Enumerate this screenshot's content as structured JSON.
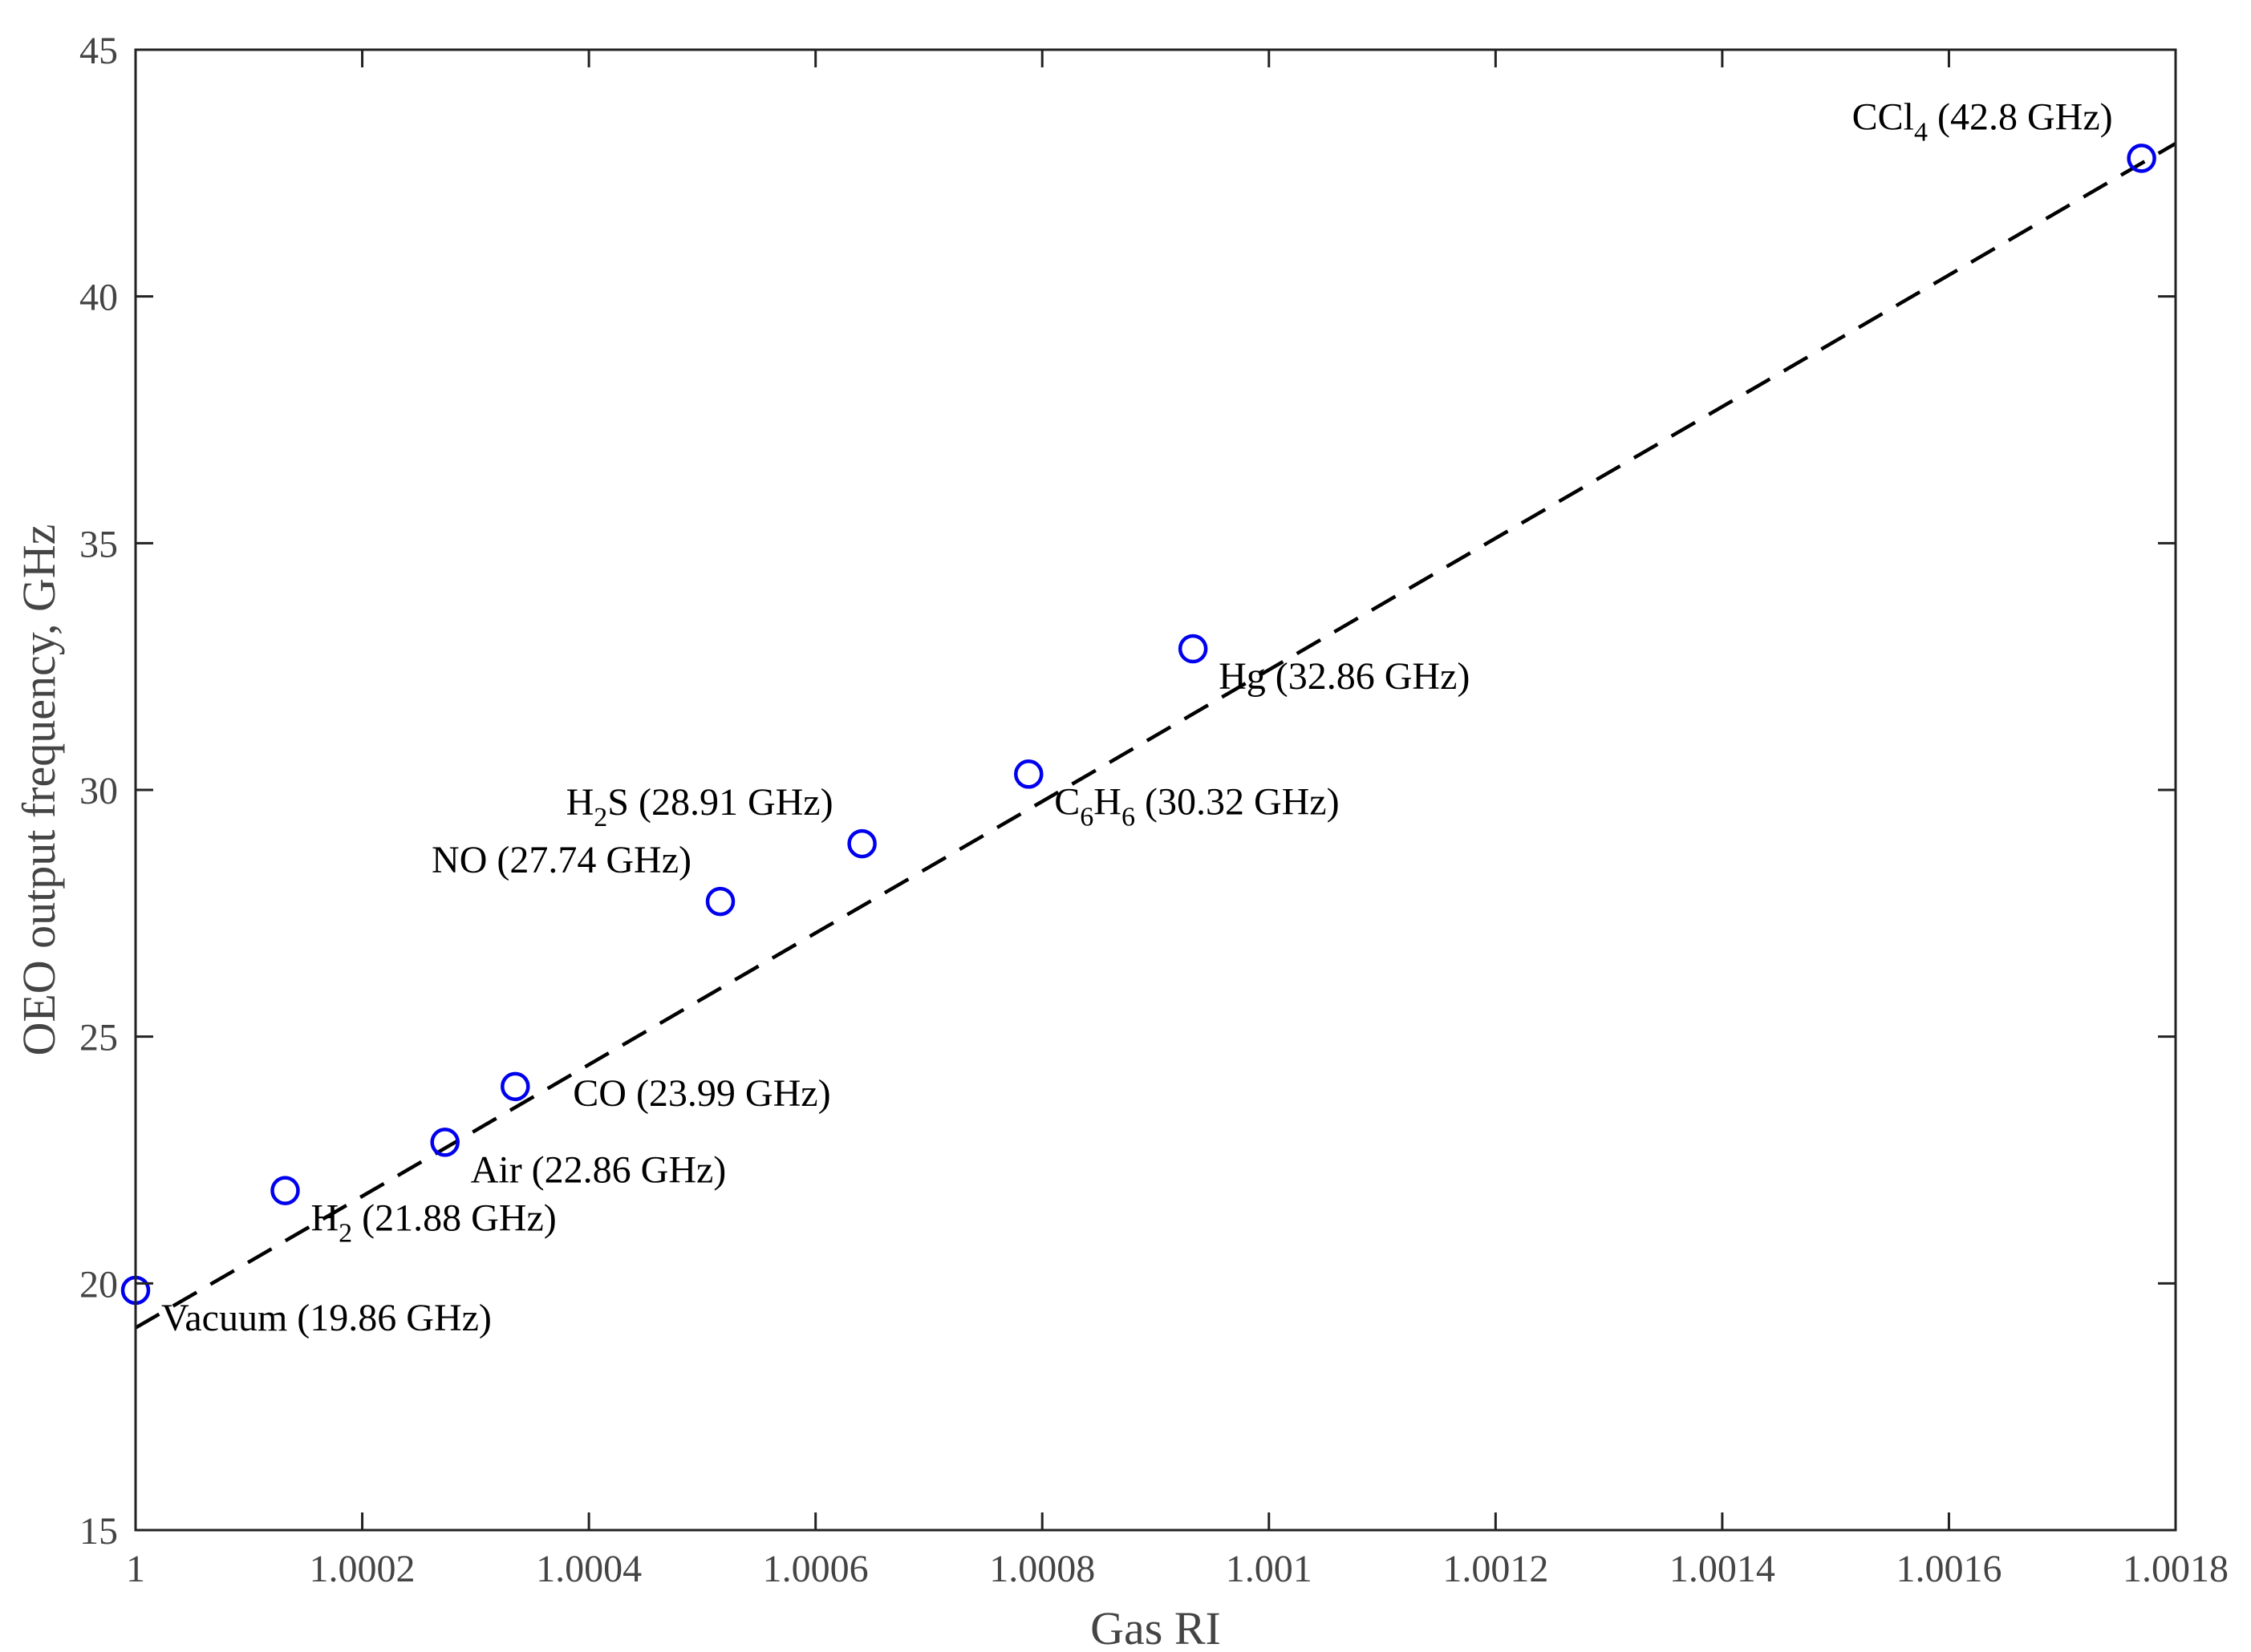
{
  "chart_data": {
    "type": "scatter",
    "title": "",
    "xlabel": "Gas RI",
    "ylabel": "OEO output frequency, GHz",
    "xlim": [
      1.0,
      1.0018
    ],
    "ylim": [
      15,
      45
    ],
    "xticks": [
      1.0,
      1.0002,
      1.0004,
      1.0006,
      1.0008,
      1.001,
      1.0012,
      1.0014,
      1.0016,
      1.0018
    ],
    "xtick_labels": [
      "1",
      "1.0002",
      "1.0004",
      "1.0006",
      "1.0008",
      "1.001",
      "1.0012",
      "1.0014",
      "1.0016",
      "1.0018"
    ],
    "yticks": [
      15,
      20,
      25,
      30,
      35,
      40,
      45
    ],
    "ytick_labels": [
      "15",
      "20",
      "25",
      "30",
      "35",
      "40",
      "45"
    ],
    "grid": false,
    "marker_color": "#0000ee",
    "points": [
      {
        "x": 1.0,
        "y": 19.86,
        "label_parts": [
          {
            "t": "Vacuum (19.86 GHz)"
          }
        ],
        "label_pos": "below-right"
      },
      {
        "x": 1.000132,
        "y": 21.88,
        "label_parts": [
          {
            "t": "H"
          },
          {
            "t": "2",
            "sub": true
          },
          {
            "t": " (21.88 GHz)"
          }
        ],
        "label_pos": "below-right"
      },
      {
        "x": 1.000273,
        "y": 22.86,
        "label_parts": [
          {
            "t": "Air (22.86 GHz)"
          }
        ],
        "label_pos": "below-right"
      },
      {
        "x": 1.000335,
        "y": 23.99,
        "label_parts": [
          {
            "t": "CO (23.99 GHz)"
          }
        ],
        "label_pos": "right"
      },
      {
        "x": 1.000516,
        "y": 27.74,
        "label_parts": [
          {
            "t": "NO (27.74 GHz)"
          }
        ],
        "label_pos": "above-left"
      },
      {
        "x": 1.000641,
        "y": 28.91,
        "label_parts": [
          {
            "t": "H"
          },
          {
            "t": "2",
            "sub": true
          },
          {
            "t": "S (28.91 GHz)"
          }
        ],
        "label_pos": "above-left"
      },
      {
        "x": 1.000788,
        "y": 30.32,
        "label_parts": [
          {
            "t": "C"
          },
          {
            "t": "6",
            "sub": true
          },
          {
            "t": "H"
          },
          {
            "t": "6",
            "sub": true
          },
          {
            "t": " (30.32 GHz)"
          }
        ],
        "label_pos": "below-right"
      },
      {
        "x": 1.000933,
        "y": 32.86,
        "label_parts": [
          {
            "t": "Hg (32.86 GHz)"
          }
        ],
        "label_pos": "below-right"
      },
      {
        "x": 1.00177,
        "y": 42.8,
        "label_parts": [
          {
            "t": "CCl"
          },
          {
            "t": "4",
            "sub": true
          },
          {
            "t": " (42.8 GHz)"
          }
        ],
        "label_pos": "above-left"
      }
    ],
    "fit_line": {
      "style": "dashed",
      "color": "#000000",
      "x": [
        1.0,
        1.0018
      ],
      "y": [
        19.1,
        43.1
      ]
    }
  }
}
